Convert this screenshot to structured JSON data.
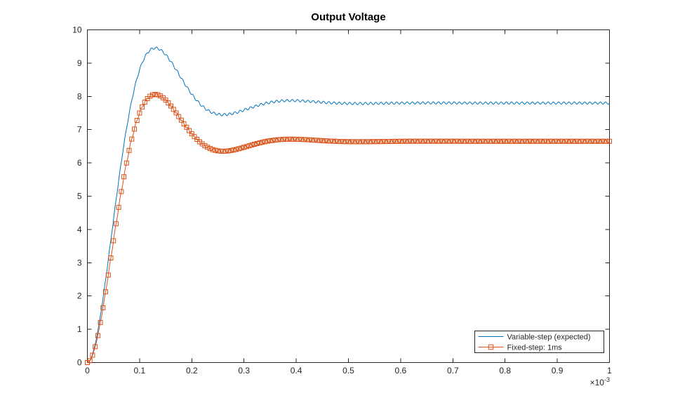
{
  "figure": {
    "background": "#ffffff",
    "axis_color": "#262626",
    "text_color": "#262626",
    "title_color": "#000000"
  },
  "chart_data": {
    "type": "line",
    "title": "Output Voltage",
    "xlabel": "",
    "ylabel": "",
    "grid": false,
    "x_axis": {
      "tick_labels": [
        "0",
        "0.1",
        "0.2",
        "0.3",
        "0.4",
        "0.5",
        "0.6",
        "0.7",
        "0.8",
        "0.9",
        "1"
      ],
      "multiplier_label": "×10⁻³",
      "multiplier_base": "×10",
      "multiplier_exponent": "-3",
      "range_display": [
        0,
        1
      ],
      "unit_scale": 0.001
    },
    "y_axis": {
      "tick_labels": [
        "0",
        "1",
        "2",
        "3",
        "4",
        "5",
        "6",
        "7",
        "8",
        "9",
        "10"
      ],
      "range": [
        0,
        10
      ]
    },
    "legend": {
      "position": "southeast",
      "border_color": "#262626",
      "background": "#ffffff"
    },
    "series": [
      {
        "name": "Variable-step (expected)",
        "color": "#0072BD",
        "marker": "none",
        "steady_state": 7.8,
        "peak": {
          "x": 0.13,
          "y": 9.45
        },
        "undershoot": {
          "x": 0.26,
          "y": 7.45
        },
        "model": {
          "form": "second-order-underdamped-step",
          "sigma": 11.931,
          "omega_d": 24.166,
          "time_unit": "x-axis display units (1e-3 s)",
          "ripple_amplitude": 0.035,
          "ripple_period": 0.01
        },
        "points_x": [
          0,
          0.025,
          0.05,
          0.075,
          0.1,
          0.13,
          0.15,
          0.2,
          0.26,
          0.3,
          0.39,
          0.5,
          0.75,
          1
        ],
        "points_y": [
          0,
          1.41,
          4.29,
          7.03,
          8.79,
          9.45,
          9.25,
          8.07,
          7.45,
          7.59,
          7.87,
          7.79,
          7.8,
          7.8
        ]
      },
      {
        "name": "Fixed-step: 1ms",
        "color": "#D95319",
        "marker": "square",
        "marker_spacing": 0.005,
        "marker_size": 6,
        "steady_state": 6.65,
        "peak": {
          "x": 0.13,
          "y": 8.06
        },
        "undershoot": {
          "x": 0.26,
          "y": 6.35
        },
        "model": {
          "form": "second-order-underdamped-step",
          "sigma": 11.931,
          "omega_d": 24.166,
          "time_unit": "x-axis display units (1e-3 s)",
          "ripple_amplitude": 0.04,
          "ripple_period": 0.01
        },
        "points_x": [
          0,
          0.025,
          0.05,
          0.075,
          0.1,
          0.13,
          0.15,
          0.2,
          0.26,
          0.3,
          0.39,
          0.5,
          0.75,
          1
        ],
        "points_y": [
          0,
          1.2,
          3.66,
          5.99,
          7.5,
          8.06,
          7.89,
          6.88,
          6.35,
          6.47,
          6.71,
          6.64,
          6.65,
          6.65
        ]
      }
    ]
  }
}
